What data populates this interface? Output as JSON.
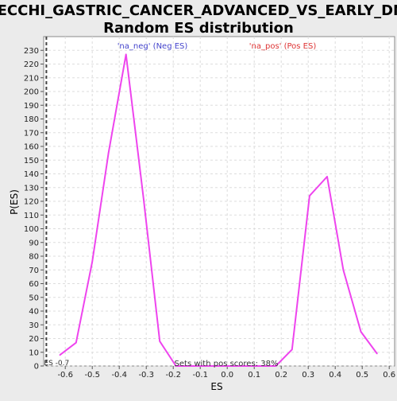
{
  "chart_data": {
    "type": "line",
    "title_line1": "VECCHI_GASTRIC_CANCER_ADVANCED_VS_EARLY_DN:",
    "title_line2": "Random ES distribution",
    "xlabel": "ES",
    "ylabel": "P(ES)",
    "xlim": [
      -0.68,
      0.62
    ],
    "ylim": [
      0,
      240
    ],
    "x_ticks": [
      -0.6,
      -0.5,
      -0.4,
      -0.3,
      -0.2,
      -0.1,
      0.0,
      0.1,
      0.2,
      0.3,
      0.4,
      0.5,
      0.6
    ],
    "x_tick_labels": [
      "-0.6",
      "-0.5",
      "-0.4",
      "-0.3",
      "-0.2",
      "-0.1",
      "0.0",
      "0.1",
      "0.2",
      "0.3",
      "0.4",
      "0.5",
      "0.6"
    ],
    "y_ticks": [
      0,
      10,
      20,
      30,
      40,
      50,
      60,
      70,
      80,
      90,
      100,
      110,
      120,
      130,
      140,
      150,
      160,
      170,
      180,
      190,
      200,
      210,
      220,
      230
    ],
    "grid": true,
    "series": [
      {
        "color": "#ee44ee",
        "x": [
          -0.62,
          -0.56,
          -0.5,
          -0.44,
          -0.375,
          -0.31,
          -0.25,
          -0.19,
          -0.13,
          -0.07,
          -0.01,
          0.05,
          0.11,
          0.18,
          0.24,
          0.305,
          0.37,
          0.43,
          0.495,
          0.555
        ],
        "y": [
          8,
          17,
          76,
          155,
          227,
          122,
          18,
          0,
          0,
          0,
          0,
          0,
          0,
          0,
          12,
          124,
          138,
          70,
          25,
          9
        ]
      }
    ],
    "es_line": {
      "x": -0.67,
      "label": "ES -0.7"
    },
    "annotations": {
      "neg_label": "'na_neg' (Neg ES)",
      "neg_color": "#4444cc",
      "pos_label": "'na_pos' (Pos ES)",
      "pos_color": "#dd3333",
      "pos_scores": "Sets with pos scores: 38%"
    }
  }
}
